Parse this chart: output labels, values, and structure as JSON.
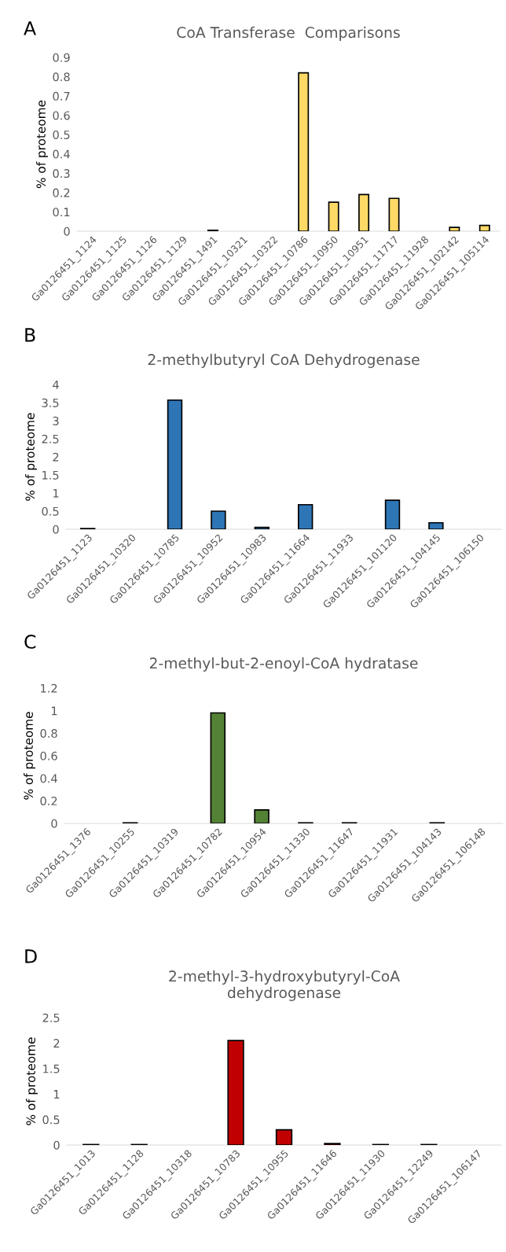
{
  "chart_data": [
    {
      "type": "bar",
      "title": "CoA Transferase  Comparisons",
      "ylabel": "% of proteome",
      "annotations": [
        "A"
      ],
      "color": "#ffd966",
      "categories": [
        "Ga0126451_1124",
        "Ga0126451_1125",
        "Ga0126451_1126",
        "Ga0126451_1129",
        "Ga0126451_1491",
        "Ga0126451_10321",
        "Ga0126451_10322",
        "Ga0126451_10786",
        "Ga0126451_10950",
        "Ga0126451_10951",
        "Ga0126451_11717",
        "Ga0126451_11928",
        "Ga0126451_102142",
        "Ga0126451_105114"
      ],
      "values": [
        0,
        0,
        0,
        0,
        0.005,
        0,
        0,
        0.82,
        0.15,
        0.19,
        0.17,
        0,
        0.02,
        0.03
      ],
      "ylim": [
        0,
        0.9
      ],
      "yticks": [
        0,
        0.1,
        0.2,
        0.3,
        0.4,
        0.5,
        0.6,
        0.7,
        0.8,
        0.9
      ]
    },
    {
      "type": "bar",
      "title": "2-methylbutyryl CoA Dehydrogenase",
      "ylabel": "% of proteome",
      "annotations": [
        "B"
      ],
      "color": "#2e75b6",
      "categories": [
        "Ga0126451_1123",
        "Ga0126451_10320",
        "Ga0126451_10785",
        "Ga0126451_10952",
        "Ga0126451_10983",
        "Ga0126451_11664",
        "Ga0126451_11933",
        "Ga0126451_101120",
        "Ga0126451_104145",
        "Ga0126451_106150"
      ],
      "values": [
        0.02,
        0,
        3.57,
        0.5,
        0.05,
        0.68,
        0,
        0.8,
        0.18,
        0
      ],
      "ylim": [
        0,
        4
      ],
      "yticks": [
        0,
        0.5,
        1,
        1.5,
        2,
        2.5,
        3,
        3.5,
        4
      ]
    },
    {
      "type": "bar",
      "title": "2-methyl-but-2-enoyl-CoA hydratase",
      "ylabel": "% of proteome",
      "annotations": [
        "C"
      ],
      "color": "#548235",
      "categories": [
        "Ga0126451_1376",
        "Ga0126451_10255",
        "Ga0126451_10319",
        "Ga0126451_10782",
        "Ga0126451_10954",
        "Ga0126451_11330",
        "Ga0126451_11647",
        "Ga0126451_11931",
        "Ga0126451_104143",
        "Ga0126451_106148"
      ],
      "values": [
        0,
        0.005,
        0,
        0.98,
        0.12,
        0.005,
        0.005,
        0,
        0.005,
        0
      ],
      "ylim": [
        0,
        1.2
      ],
      "yticks": [
        0,
        0.2,
        0.4,
        0.6,
        0.8,
        1,
        1.2
      ]
    },
    {
      "type": "bar",
      "title": "2-methyl-3-hydroxybutyryl-CoA\ndehydrogenase",
      "ylabel": "% of proteome",
      "annotations": [
        "D"
      ],
      "color": "#c00000",
      "categories": [
        "Ga0126451_1013",
        "Ga0126451_1128",
        "Ga0126451_10318",
        "Ga0126451_10783",
        "Ga0126451_10955",
        "Ga0126451_11646",
        "Ga0126451_11930",
        "Ga0126451_12249",
        "Ga0126451_106147"
      ],
      "values": [
        0.01,
        0.01,
        0,
        2.05,
        0.3,
        0.03,
        0.01,
        0.01,
        0
      ],
      "ylim": [
        0,
        2.5
      ],
      "yticks": [
        0,
        0.5,
        1,
        1.5,
        2,
        2.5
      ]
    }
  ]
}
